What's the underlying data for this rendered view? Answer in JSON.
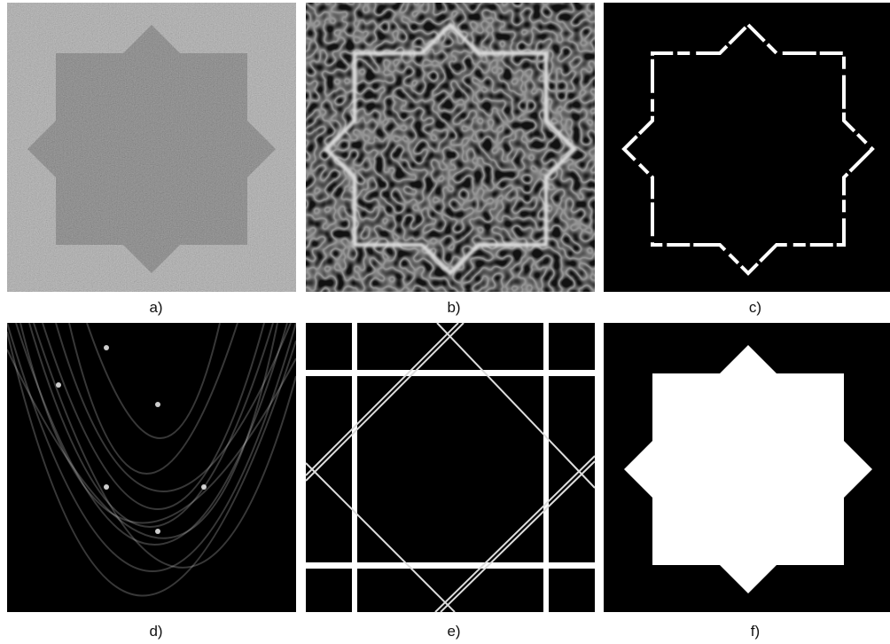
{
  "figure": {
    "panels": [
      {
        "label": "a)"
      },
      {
        "label": "b)"
      },
      {
        "label": "c)"
      },
      {
        "label": "d)"
      },
      {
        "label": "e)"
      },
      {
        "label": "f)"
      }
    ]
  }
}
